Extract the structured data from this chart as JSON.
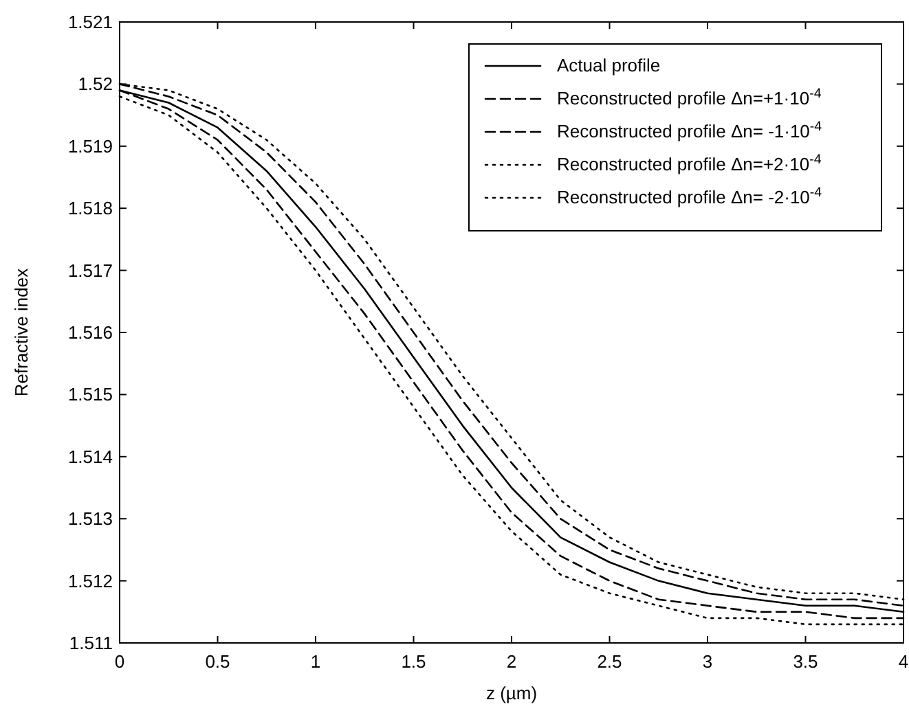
{
  "chart_data": {
    "type": "line",
    "xlabel": "z (µm)",
    "ylabel": "Refractive index",
    "x": [
      0,
      0.25,
      0.5,
      0.75,
      1,
      1.25,
      1.5,
      1.75,
      2,
      2.25,
      2.5,
      2.75,
      3,
      3.25,
      3.5,
      3.75,
      4
    ],
    "xlim": [
      0,
      4
    ],
    "xticks": [
      0,
      0.5,
      1,
      1.5,
      2,
      2.5,
      3,
      3.5,
      4
    ],
    "ylim": [
      1.511,
      1.521
    ],
    "yticks": [
      1.511,
      1.512,
      1.513,
      1.514,
      1.515,
      1.516,
      1.517,
      1.518,
      1.519,
      1.52,
      1.521
    ],
    "grid": false,
    "legend": "top right",
    "marker": "none",
    "series": [
      {
        "name": "Actual profile",
        "color": "#000000",
        "line_style": "solid",
        "values": [
          1.5199,
          1.5197,
          1.5193,
          1.5186,
          1.5177,
          1.5167,
          1.5156,
          1.5145,
          1.5135,
          1.5127,
          1.5123,
          1.512,
          1.5118,
          1.5117,
          1.5116,
          1.5116,
          1.5115
        ]
      },
      {
        "name": "Reconstructed profile Δn=+1·10$^{-4}$",
        "color": "#000000",
        "line_style": "dashed",
        "values": [
          1.52,
          1.5198,
          1.5195,
          1.5189,
          1.5181,
          1.5171,
          1.516,
          1.5149,
          1.5139,
          1.513,
          1.5125,
          1.5122,
          1.512,
          1.5118,
          1.5117,
          1.5117,
          1.5116
        ]
      },
      {
        "name": "Reconstructed profile Δn= -1·10$^{-4}$",
        "color": "#000000",
        "line_style": "dashed",
        "values": [
          1.5199,
          1.5196,
          1.5191,
          1.5183,
          1.5173,
          1.5163,
          1.5152,
          1.5141,
          1.5131,
          1.5124,
          1.512,
          1.5117,
          1.5116,
          1.5115,
          1.5115,
          1.5114,
          1.5114
        ]
      },
      {
        "name": "Reconstructed profile Δn=+2·10$^{-4}$",
        "color": "#000000",
        "line_style": "dotted",
        "values": [
          1.52,
          1.5199,
          1.5196,
          1.5191,
          1.5184,
          1.5175,
          1.5164,
          1.5153,
          1.5143,
          1.5133,
          1.5127,
          1.5123,
          1.5121,
          1.5119,
          1.5118,
          1.5118,
          1.5117
        ]
      },
      {
        "name": "Reconstructed profile Δn= -2·10$^{-4}$",
        "color": "#000000",
        "line_style": "dotted",
        "values": [
          1.5198,
          1.5195,
          1.5189,
          1.518,
          1.517,
          1.5159,
          1.5148,
          1.5137,
          1.5128,
          1.5121,
          1.5118,
          1.5116,
          1.5114,
          1.5114,
          1.5113,
          1.5113,
          1.5113
        ]
      }
    ]
  }
}
